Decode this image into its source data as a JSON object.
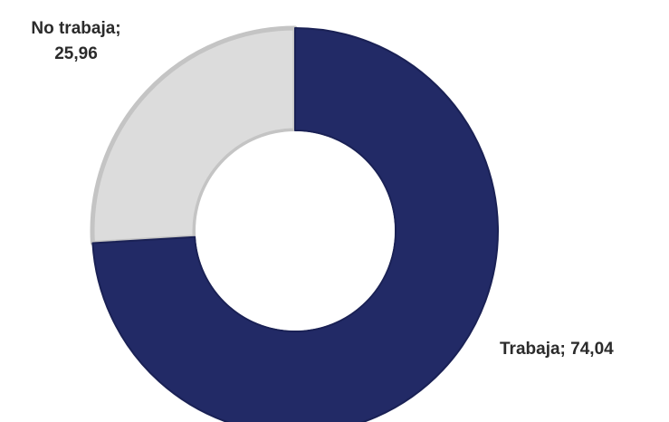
{
  "chart_data": {
    "type": "pie",
    "variant": "donut",
    "title": "",
    "categories": [
      "No trabaja",
      "Trabaja"
    ],
    "values": [
      25.96,
      74.04
    ],
    "colors": [
      "#dcdcdc",
      "#222a66"
    ],
    "labels": [
      {
        "name": "No trabaja;",
        "value": "25,96"
      },
      {
        "name": "Trabaja;",
        "value": "74,04"
      }
    ],
    "legend": "none"
  }
}
